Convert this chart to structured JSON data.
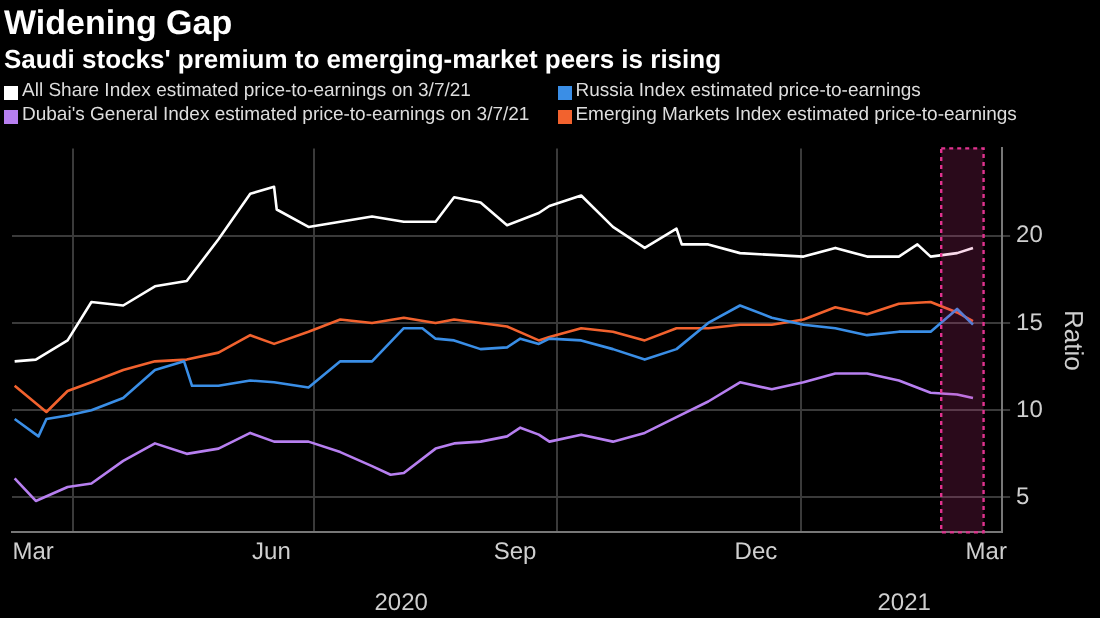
{
  "chart_data": {
    "type": "line",
    "title": "Widening Gap",
    "subtitle": "Saudi stocks' premium to emerging-market peers is rising",
    "ylabel": "Ratio",
    "series": [
      {
        "name": "All Share Index estimated price-to-earnings on 3/7/21",
        "color": "#ffffff",
        "x": [
          "2020-03-10",
          "2020-03-18",
          "2020-03-30",
          "2020-04-08",
          "2020-04-20",
          "2020-05-02",
          "2020-05-14",
          "2020-05-26",
          "2020-06-07",
          "2020-06-16",
          "2020-06-17",
          "2020-06-29",
          "2020-07-11",
          "2020-07-23",
          "2020-08-04",
          "2020-08-16",
          "2020-08-23",
          "2020-09-02",
          "2020-09-12",
          "2020-09-24",
          "2020-09-28",
          "2020-10-10",
          "2020-10-22",
          "2020-11-03",
          "2020-11-15",
          "2020-11-17",
          "2020-11-27",
          "2020-12-09",
          "2020-12-21",
          "2021-01-02",
          "2021-01-14",
          "2021-01-26",
          "2021-02-07",
          "2021-02-14",
          "2021-02-19",
          "2021-03-01",
          "2021-03-07"
        ],
        "values": [
          12.8,
          12.9,
          14.0,
          16.2,
          16.0,
          17.1,
          17.4,
          19.8,
          22.4,
          22.8,
          21.5,
          20.5,
          20.8,
          21.1,
          20.8,
          20.8,
          22.2,
          21.9,
          20.6,
          21.3,
          21.7,
          22.3,
          20.5,
          19.3,
          20.4,
          19.5,
          19.5,
          19.0,
          18.9,
          18.8,
          19.3,
          18.8,
          18.8,
          19.5,
          18.8,
          19.0,
          19.3
        ]
      },
      {
        "name": "Russia Index estimated price-to-earnings",
        "color": "#3a8ee6",
        "x": [
          "2020-03-10",
          "2020-03-19",
          "2020-03-22",
          "2020-03-30",
          "2020-04-08",
          "2020-04-20",
          "2020-05-02",
          "2020-05-13",
          "2020-05-16",
          "2020-05-26",
          "2020-06-07",
          "2020-06-16",
          "2020-06-29",
          "2020-07-11",
          "2020-07-23",
          "2020-08-04",
          "2020-08-11",
          "2020-08-16",
          "2020-08-23",
          "2020-09-02",
          "2020-09-12",
          "2020-09-17",
          "2020-09-24",
          "2020-09-28",
          "2020-10-10",
          "2020-10-22",
          "2020-11-03",
          "2020-11-15",
          "2020-11-27",
          "2020-12-09",
          "2020-12-21",
          "2021-01-02",
          "2021-01-14",
          "2021-01-26",
          "2021-02-07",
          "2021-02-19",
          "2021-03-01",
          "2021-03-07"
        ],
        "values": [
          9.5,
          8.5,
          9.5,
          9.7,
          10.0,
          10.7,
          12.3,
          12.8,
          11.4,
          11.4,
          11.7,
          11.6,
          11.3,
          12.8,
          12.8,
          14.7,
          14.7,
          14.1,
          14.0,
          13.5,
          13.6,
          14.1,
          13.8,
          14.1,
          14.0,
          13.5,
          12.9,
          13.5,
          15.0,
          16.0,
          15.3,
          14.9,
          14.7,
          14.3,
          14.5,
          14.5,
          15.8,
          14.9
        ]
      },
      {
        "name": "Dubai's General Index estimated price-to-earnings on 3/7/21",
        "color": "#b77ff0",
        "x": [
          "2020-03-10",
          "2020-03-18",
          "2020-03-30",
          "2020-04-08",
          "2020-04-20",
          "2020-05-02",
          "2020-05-14",
          "2020-05-26",
          "2020-06-07",
          "2020-06-16",
          "2020-06-29",
          "2020-07-11",
          "2020-07-23",
          "2020-07-30",
          "2020-08-04",
          "2020-08-16",
          "2020-08-23",
          "2020-09-02",
          "2020-09-12",
          "2020-09-17",
          "2020-09-24",
          "2020-09-28",
          "2020-10-10",
          "2020-10-22",
          "2020-11-03",
          "2020-11-15",
          "2020-11-27",
          "2020-12-09",
          "2020-12-21",
          "2021-01-02",
          "2021-01-14",
          "2021-01-26",
          "2021-02-07",
          "2021-02-19",
          "2021-03-01",
          "2021-03-07"
        ],
        "values": [
          6.1,
          4.8,
          5.6,
          5.8,
          7.1,
          8.1,
          7.5,
          7.8,
          8.7,
          8.2,
          8.2,
          7.6,
          6.8,
          6.3,
          6.4,
          7.8,
          8.1,
          8.2,
          8.5,
          9.0,
          8.6,
          8.2,
          8.6,
          8.2,
          8.7,
          9.6,
          10.5,
          11.6,
          11.2,
          11.6,
          12.1,
          12.1,
          11.7,
          11.0,
          10.9,
          10.7
        ]
      },
      {
        "name": "Emerging Markets Index estimated price-to-earnings",
        "color": "#f2622e",
        "x": [
          "2020-03-10",
          "2020-03-18",
          "2020-03-22",
          "2020-03-30",
          "2020-04-08",
          "2020-04-20",
          "2020-05-02",
          "2020-05-14",
          "2020-05-26",
          "2020-06-07",
          "2020-06-16",
          "2020-06-29",
          "2020-07-11",
          "2020-07-23",
          "2020-08-04",
          "2020-08-16",
          "2020-08-23",
          "2020-09-02",
          "2020-09-12",
          "2020-09-24",
          "2020-09-28",
          "2020-10-10",
          "2020-10-22",
          "2020-11-03",
          "2020-11-15",
          "2020-11-27",
          "2020-12-09",
          "2020-12-21",
          "2021-01-02",
          "2021-01-14",
          "2021-01-26",
          "2021-02-07",
          "2021-02-19",
          "2021-03-01",
          "2021-03-07"
        ],
        "values": [
          11.4,
          10.4,
          9.9,
          11.1,
          11.6,
          12.3,
          12.8,
          12.9,
          13.3,
          14.3,
          13.8,
          14.5,
          15.2,
          15.0,
          15.3,
          15.0,
          15.2,
          15.0,
          14.8,
          14.0,
          14.2,
          14.7,
          14.5,
          14.0,
          14.7,
          14.7,
          14.9,
          14.9,
          15.2,
          15.9,
          15.5,
          16.1,
          16.2,
          15.6,
          15.1
        ]
      }
    ],
    "xlim": [
      "2020-03-09",
      "2021-03-18"
    ],
    "xticks": [
      {
        "value": "2020-03-17",
        "label": "Mar"
      },
      {
        "value": "2020-04-01",
        "label": null
      },
      {
        "value": "2020-06-15",
        "label": "Jun"
      },
      {
        "value": "2020-07-01",
        "label": null
      },
      {
        "value": "2020-09-15",
        "label": "Sep"
      },
      {
        "value": "2020-10-01",
        "label": null
      },
      {
        "value": "2020-12-15",
        "label": "Dec"
      },
      {
        "value": "2021-01-01",
        "label": null
      },
      {
        "value": "2021-03-12",
        "label": "Mar"
      }
    ],
    "x2lim": [
      "2020-03-09",
      "2021-03-18"
    ],
    "x2ticks": [
      {
        "value": "2020-08-03",
        "label": "2020"
      },
      {
        "value": "2021-02-09",
        "label": "2021"
      }
    ],
    "ylim": [
      3,
      25
    ],
    "yticks": [
      5,
      10,
      15,
      20
    ],
    "bands": [
      {
        "axis": "x",
        "from": "2021-02-23",
        "to": "2021-03-11",
        "color": "#e0338f"
      }
    ],
    "grid": true,
    "legend": "top left",
    "marker": "none",
    "line_style": "solid"
  }
}
